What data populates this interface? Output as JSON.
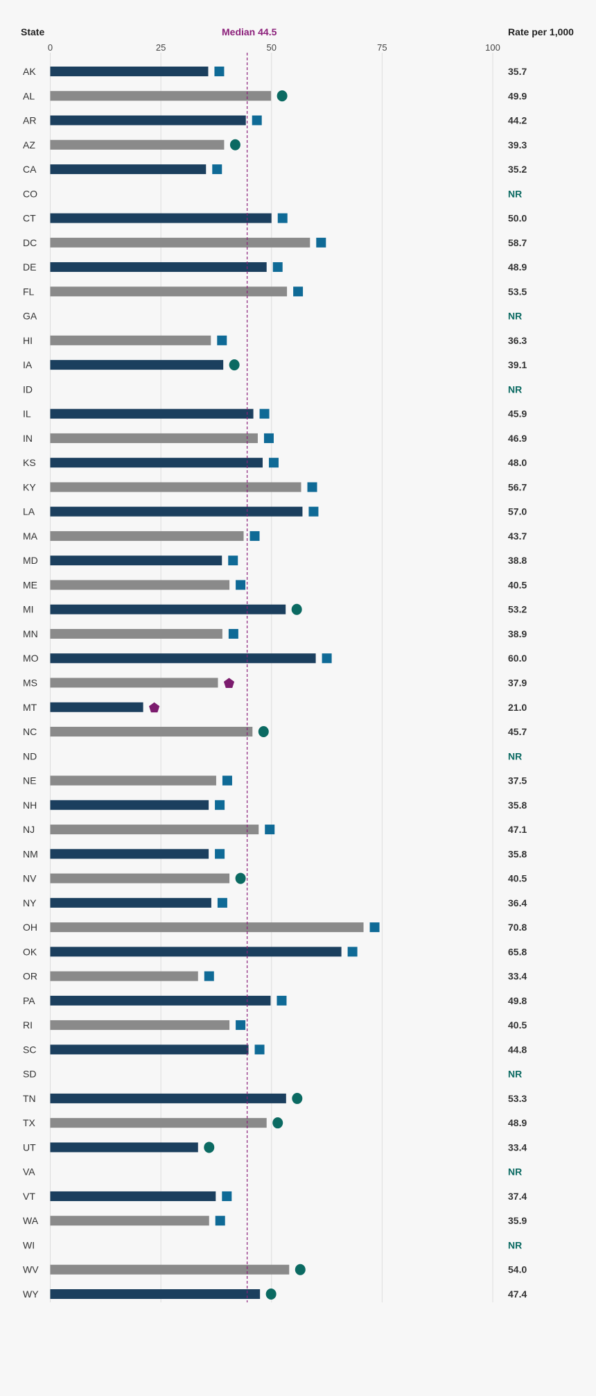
{
  "chart_data": {
    "type": "bar",
    "orientation": "horizontal",
    "header_state": "State",
    "header_rate": "Rate per 1,000",
    "median_label": "Median 44.5",
    "median": 44.5,
    "xlim": [
      0,
      100
    ],
    "xticks": [
      0,
      25,
      50,
      75,
      100
    ],
    "grid": true,
    "nr_label": "NR",
    "colors": {
      "bar_dark": "#1b3f5e",
      "bar_gray": "#8a8a8a",
      "square": "#0f6a96",
      "circle": "#0b6a62",
      "pentagon": "#7c1c6e",
      "median": "#8b1f7a",
      "nr": "#0b6a62"
    },
    "rows": [
      {
        "state": "AK",
        "value": 35.7,
        "label": "35.7",
        "marker": "square"
      },
      {
        "state": "AL",
        "value": 49.9,
        "label": "49.9",
        "marker": "circle"
      },
      {
        "state": "AR",
        "value": 44.2,
        "label": "44.2",
        "marker": "square"
      },
      {
        "state": "AZ",
        "value": 39.3,
        "label": "39.3",
        "marker": "circle"
      },
      {
        "state": "CA",
        "value": 35.2,
        "label": "35.2",
        "marker": "square"
      },
      {
        "state": "CO",
        "value": null,
        "label": "NR",
        "marker": null
      },
      {
        "state": "CT",
        "value": 50.0,
        "label": "50.0",
        "marker": "square"
      },
      {
        "state": "DC",
        "value": 58.7,
        "label": "58.7",
        "marker": "square"
      },
      {
        "state": "DE",
        "value": 48.9,
        "label": "48.9",
        "marker": "square"
      },
      {
        "state": "FL",
        "value": 53.5,
        "label": "53.5",
        "marker": "square"
      },
      {
        "state": "GA",
        "value": null,
        "label": "NR",
        "marker": null
      },
      {
        "state": "HI",
        "value": 36.3,
        "label": "36.3",
        "marker": "square"
      },
      {
        "state": "IA",
        "value": 39.1,
        "label": "39.1",
        "marker": "circle"
      },
      {
        "state": "ID",
        "value": null,
        "label": "NR",
        "marker": null
      },
      {
        "state": "IL",
        "value": 45.9,
        "label": "45.9",
        "marker": "square"
      },
      {
        "state": "IN",
        "value": 46.9,
        "label": "46.9",
        "marker": "square"
      },
      {
        "state": "KS",
        "value": 48.0,
        "label": "48.0",
        "marker": "square"
      },
      {
        "state": "KY",
        "value": 56.7,
        "label": "56.7",
        "marker": "square"
      },
      {
        "state": "LA",
        "value": 57.0,
        "label": "57.0",
        "marker": "square"
      },
      {
        "state": "MA",
        "value": 43.7,
        "label": "43.7",
        "marker": "square"
      },
      {
        "state": "MD",
        "value": 38.8,
        "label": "38.8",
        "marker": "square"
      },
      {
        "state": "ME",
        "value": 40.5,
        "label": "40.5",
        "marker": "square"
      },
      {
        "state": "MI",
        "value": 53.2,
        "label": "53.2",
        "marker": "circle"
      },
      {
        "state": "MN",
        "value": 38.9,
        "label": "38.9",
        "marker": "square"
      },
      {
        "state": "MO",
        "value": 60.0,
        "label": "60.0",
        "marker": "square"
      },
      {
        "state": "MS",
        "value": 37.9,
        "label": "37.9",
        "marker": "pentagon"
      },
      {
        "state": "MT",
        "value": 21.0,
        "label": "21.0",
        "marker": "pentagon"
      },
      {
        "state": "NC",
        "value": 45.7,
        "label": "45.7",
        "marker": "circle"
      },
      {
        "state": "ND",
        "value": null,
        "label": "NR",
        "marker": null
      },
      {
        "state": "NE",
        "value": 37.5,
        "label": "37.5",
        "marker": "square"
      },
      {
        "state": "NH",
        "value": 35.8,
        "label": "35.8",
        "marker": "square"
      },
      {
        "state": "NJ",
        "value": 47.1,
        "label": "47.1",
        "marker": "square"
      },
      {
        "state": "NM",
        "value": 35.8,
        "label": "35.8",
        "marker": "square"
      },
      {
        "state": "NV",
        "value": 40.5,
        "label": "40.5",
        "marker": "circle"
      },
      {
        "state": "NY",
        "value": 36.4,
        "label": "36.4",
        "marker": "square"
      },
      {
        "state": "OH",
        "value": 70.8,
        "label": "70.8",
        "marker": "square"
      },
      {
        "state": "OK",
        "value": 65.8,
        "label": "65.8",
        "marker": "square"
      },
      {
        "state": "OR",
        "value": 33.4,
        "label": "33.4",
        "marker": "square"
      },
      {
        "state": "PA",
        "value": 49.8,
        "label": "49.8",
        "marker": "square"
      },
      {
        "state": "RI",
        "value": 40.5,
        "label": "40.5",
        "marker": "square"
      },
      {
        "state": "SC",
        "value": 44.8,
        "label": "44.8",
        "marker": "square"
      },
      {
        "state": "SD",
        "value": null,
        "label": "NR",
        "marker": null
      },
      {
        "state": "TN",
        "value": 53.3,
        "label": "53.3",
        "marker": "circle"
      },
      {
        "state": "TX",
        "value": 48.9,
        "label": "48.9",
        "marker": "circle"
      },
      {
        "state": "UT",
        "value": 33.4,
        "label": "33.4",
        "marker": "circle"
      },
      {
        "state": "VA",
        "value": null,
        "label": "NR",
        "marker": null
      },
      {
        "state": "VT",
        "value": 37.4,
        "label": "37.4",
        "marker": "square"
      },
      {
        "state": "WA",
        "value": 35.9,
        "label": "35.9",
        "marker": "square"
      },
      {
        "state": "WI",
        "value": null,
        "label": "NR",
        "marker": null
      },
      {
        "state": "WV",
        "value": 54.0,
        "label": "54.0",
        "marker": "circle"
      },
      {
        "state": "WY",
        "value": 47.4,
        "label": "47.4",
        "marker": "circle"
      }
    ]
  }
}
